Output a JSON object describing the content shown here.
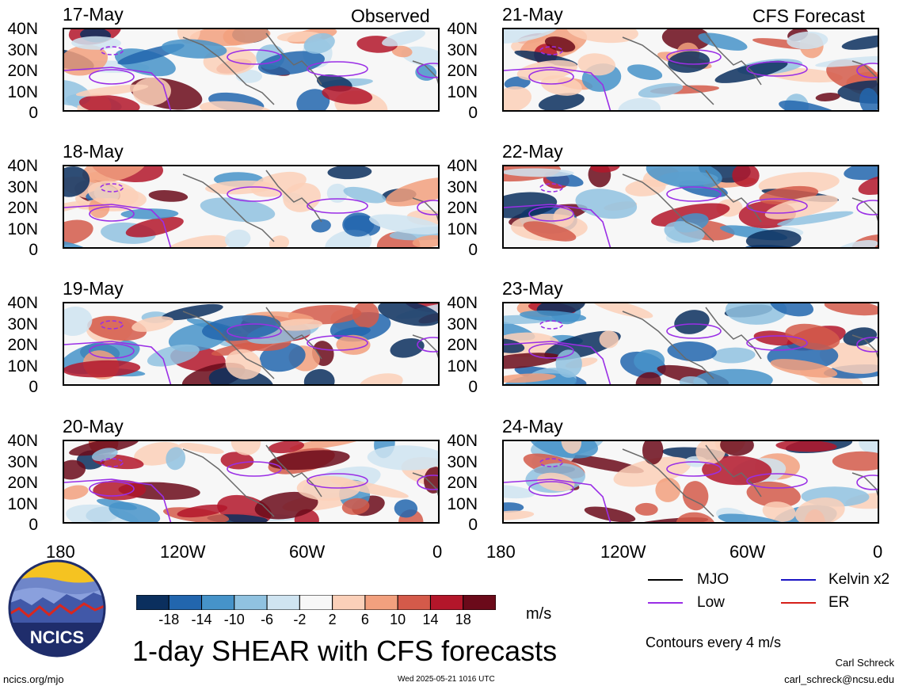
{
  "headers": {
    "observed": "Observed",
    "forecast": "CFS Forecast"
  },
  "panels_left": [
    {
      "date": "17-May"
    },
    {
      "date": "18-May"
    },
    {
      "date": "19-May"
    },
    {
      "date": "20-May"
    }
  ],
  "panels_right": [
    {
      "date": "21-May"
    },
    {
      "date": "22-May"
    },
    {
      "date": "23-May"
    },
    {
      "date": "24-May"
    }
  ],
  "y_ticks": [
    "40N",
    "30N",
    "20N",
    "10N",
    "0"
  ],
  "x_ticks": [
    "180",
    "120W",
    "60W",
    "0"
  ],
  "colorbar": {
    "ticks": [
      "-18",
      "-14",
      "-10",
      "-6",
      "-2",
      "2",
      "6",
      "10",
      "14",
      "18"
    ],
    "unit": "m/s",
    "colors": [
      "#0b2f5e",
      "#2266ae",
      "#4693c9",
      "#90c2e0",
      "#cfe4f1",
      "#f7f7f7",
      "#fbd0b9",
      "#f2a07e",
      "#d45a4a",
      "#b3162a",
      "#6b0a1a"
    ]
  },
  "legend": {
    "items": [
      {
        "label": "MJO",
        "color": "#000000"
      },
      {
        "label": "Kelvin x2",
        "color": "#1a14c4"
      },
      {
        "label": "Low",
        "color": "#9a2ee6"
      },
      {
        "label": "ER",
        "color": "#d6201a"
      }
    ],
    "contours_note": "Contours every 4 m/s"
  },
  "title": "1-day SHEAR with CFS forecasts",
  "logo_text": "NCICS",
  "footer": {
    "url": "ncics.org/mjo",
    "timestamp": "Wed 2025-05-21 1016 UTC",
    "author": "Carl Schreck",
    "email": "carl_schreck@ncsu.edu"
  }
}
